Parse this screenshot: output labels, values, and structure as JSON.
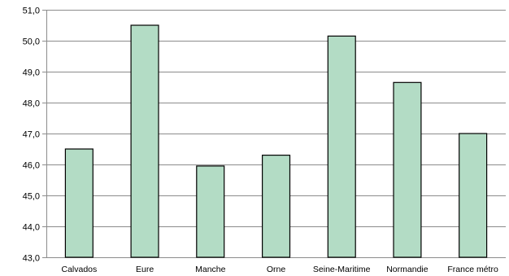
{
  "chart_data": {
    "type": "bar",
    "title": "",
    "xlabel": "",
    "ylabel": "",
    "categories": [
      "Calvados",
      "Eure",
      "Manche",
      "Orne",
      "Seine-Maritime",
      "Normandie",
      "France métro"
    ],
    "values": [
      46.5,
      50.5,
      45.95,
      46.3,
      50.15,
      48.65,
      47.0
    ],
    "ylim": [
      43.0,
      51.0
    ],
    "yticks": [
      "43,0",
      "44,0",
      "45,0",
      "46,0",
      "47,0",
      "48,0",
      "49,0",
      "50,0",
      "51,0"
    ],
    "grid": true,
    "legend": "none",
    "colors": {
      "bar_fill": "#b3dcc5",
      "bar_stroke": "#000000",
      "grid": "#8c8c8c",
      "axis": "#8c8c8c"
    }
  }
}
